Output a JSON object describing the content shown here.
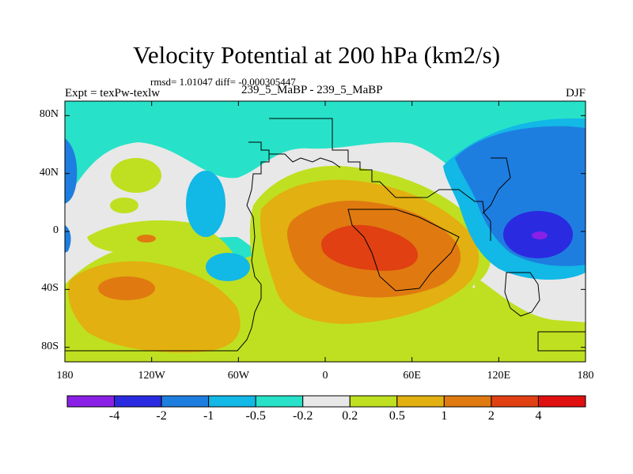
{
  "title": "Velocity Potential at 200 hPa (km2/s)",
  "stats": "rmsd= 1.01047 diff= -0.000305447",
  "left_label": "Expt = texPw-texlw",
  "center_label": "239_5_MaBP - 239_5_MaBP",
  "right_label": "DJF",
  "map": {
    "lon_ticks": [
      {
        "value": -180,
        "label": "180"
      },
      {
        "value": -120,
        "label": "120W"
      },
      {
        "value": -60,
        "label": "60W"
      },
      {
        "value": 0,
        "label": "0"
      },
      {
        "value": 60,
        "label": "60E"
      },
      {
        "value": 120,
        "label": "120E"
      },
      {
        "value": 180,
        "label": "180"
      }
    ],
    "lat_ticks": [
      {
        "value": 80,
        "label": "80N"
      },
      {
        "value": 40,
        "label": "40N"
      },
      {
        "value": 0,
        "label": "0"
      },
      {
        "value": -40,
        "label": "40S"
      },
      {
        "value": -80,
        "label": "80S"
      }
    ],
    "lat_range": [
      -90,
      90
    ],
    "lon_range": [
      -180,
      180
    ]
  },
  "colorbar": {
    "colors": [
      "#8a20e6",
      "#2a2ae0",
      "#1e7ee0",
      "#12b8e6",
      "#27e2c8",
      "#e8e8e8",
      "#bfe020",
      "#e2b010",
      "#e07a10",
      "#e04012",
      "#e01010"
    ],
    "labels": [
      "-4",
      "-2",
      "-1",
      "-0.5",
      "-0.2",
      "0.2",
      "0.5",
      "1",
      "2",
      "4"
    ]
  },
  "palette": {
    "bg_cyan": "#27e2c8",
    "light_blue": "#12b8e6",
    "mid_blue": "#1e7ee0",
    "dark_blue": "#2a2ae0",
    "violet": "#8a20e6",
    "white": "#e8e8e8",
    "yellow_green": "#bfe020",
    "gold": "#e2b010",
    "orange": "#e07a10",
    "red_orange": "#e04012"
  }
}
